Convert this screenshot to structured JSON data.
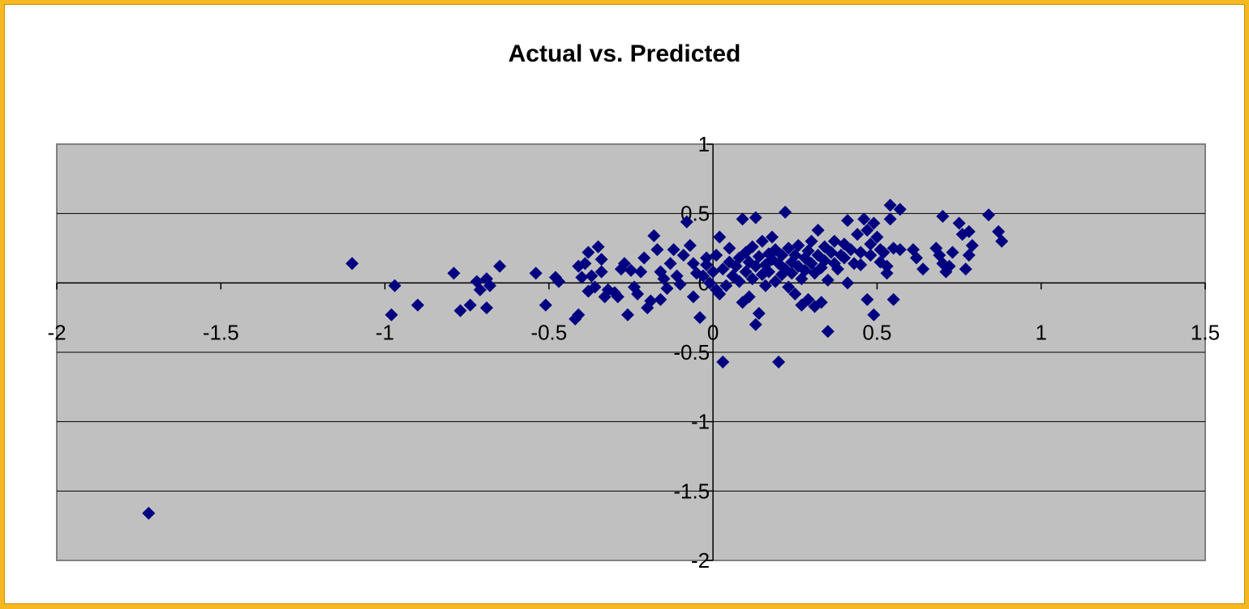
{
  "chart_data": {
    "type": "scatter",
    "title": "Actual vs. Predicted",
    "xlabel": "",
    "ylabel": "",
    "xlim": [
      -2,
      1.5
    ],
    "ylim": [
      -2,
      1
    ],
    "xticks": [
      "-2",
      "-1.5",
      "-1",
      "-0.5",
      "0",
      "0.5",
      "1",
      "1.5"
    ],
    "yticks": [
      "1",
      "0.5",
      "0",
      "-0.5",
      "-1",
      "-1.5",
      "-2"
    ],
    "grid": "horizontal",
    "legend": "none",
    "plot_background": "#c0c0c0",
    "marker": "diamond",
    "marker_color": "#000080",
    "series": [
      {
        "points": [
          [
            -1.72,
            -1.66
          ],
          [
            -1.1,
            0.14
          ],
          [
            -0.97,
            -0.02
          ],
          [
            -0.98,
            -0.23
          ],
          [
            -0.9,
            -0.16
          ],
          [
            -0.79,
            0.07
          ],
          [
            -0.77,
            -0.2
          ],
          [
            -0.74,
            -0.16
          ],
          [
            -0.72,
            0.01
          ],
          [
            -0.71,
            -0.05
          ],
          [
            -0.69,
            0.03
          ],
          [
            -0.68,
            -0.02
          ],
          [
            -0.69,
            -0.18
          ],
          [
            -0.65,
            0.12
          ],
          [
            -0.54,
            0.07
          ],
          [
            -0.51,
            -0.16
          ],
          [
            -0.48,
            0.04
          ],
          [
            -0.47,
            0.01
          ],
          [
            -0.42,
            -0.26
          ],
          [
            -0.41,
            -0.23
          ],
          [
            -0.41,
            0.12
          ],
          [
            -0.4,
            0.04
          ],
          [
            -0.39,
            0.14
          ],
          [
            -0.38,
            0.22
          ],
          [
            -0.38,
            -0.06
          ],
          [
            -0.37,
            0.05
          ],
          [
            -0.36,
            -0.03
          ],
          [
            -0.35,
            0.26
          ],
          [
            -0.34,
            0.17
          ],
          [
            -0.34,
            0.08
          ],
          [
            -0.33,
            -0.1
          ],
          [
            -0.32,
            -0.05
          ],
          [
            -0.3,
            -0.07
          ],
          [
            -0.29,
            -0.1
          ],
          [
            -0.28,
            0.1
          ],
          [
            -0.27,
            0.14
          ],
          [
            -0.26,
            -0.23
          ],
          [
            -0.25,
            0.09
          ],
          [
            -0.24,
            -0.03
          ],
          [
            -0.23,
            -0.08
          ],
          [
            -0.22,
            0.08
          ],
          [
            -0.21,
            0.18
          ],
          [
            -0.2,
            -0.18
          ],
          [
            -0.19,
            -0.13
          ],
          [
            -0.18,
            0.34
          ],
          [
            -0.17,
            0.24
          ],
          [
            -0.16,
            0.08
          ],
          [
            -0.16,
            -0.12
          ],
          [
            -0.15,
            0.03
          ],
          [
            -0.14,
            -0.04
          ],
          [
            -0.13,
            0.14
          ],
          [
            -0.12,
            0.24
          ],
          [
            -0.11,
            0.05
          ],
          [
            -0.1,
            -0.01
          ],
          [
            -0.09,
            0.2
          ],
          [
            -0.08,
            0.44
          ],
          [
            -0.07,
            0.27
          ],
          [
            -0.06,
            0.14
          ],
          [
            -0.06,
            -0.1
          ],
          [
            -0.05,
            0.07
          ],
          [
            -0.04,
            -0.25
          ],
          [
            -0.03,
            0.05
          ],
          [
            -0.02,
            0.13
          ],
          [
            -0.02,
            0.18
          ],
          [
            -0.01,
            0.0
          ],
          [
            0.0,
            0.08
          ],
          [
            0.01,
            -0.05
          ],
          [
            0.01,
            0.2
          ],
          [
            0.02,
            0.33
          ],
          [
            0.02,
            -0.08
          ],
          [
            0.03,
            0.1
          ],
          [
            0.03,
            -0.57
          ],
          [
            0.04,
            -0.02
          ],
          [
            0.05,
            0.15
          ],
          [
            0.05,
            0.25
          ],
          [
            0.06,
            0.05
          ],
          [
            0.07,
            0.12
          ],
          [
            0.08,
            0.01
          ],
          [
            0.08,
            0.18
          ],
          [
            0.09,
            0.46
          ],
          [
            0.09,
            -0.14
          ],
          [
            0.1,
            0.08
          ],
          [
            0.1,
            0.22
          ],
          [
            0.11,
            0.15
          ],
          [
            0.11,
            -0.1
          ],
          [
            0.12,
            0.03
          ],
          [
            0.12,
            0.26
          ],
          [
            0.13,
            0.12
          ],
          [
            0.13,
            0.47
          ],
          [
            0.13,
            -0.3
          ],
          [
            0.14,
            0.19
          ],
          [
            0.14,
            -0.22
          ],
          [
            0.15,
            0.06
          ],
          [
            0.15,
            0.3
          ],
          [
            0.16,
            -0.02
          ],
          [
            0.16,
            0.13
          ],
          [
            0.17,
            0.21
          ],
          [
            0.17,
            0.08
          ],
          [
            0.18,
            0.17
          ],
          [
            0.18,
            0.33
          ],
          [
            0.19,
            0.01
          ],
          [
            0.19,
            0.24
          ],
          [
            0.2,
            -0.57
          ],
          [
            0.2,
            0.14
          ],
          [
            0.21,
            0.06
          ],
          [
            0.21,
            0.2
          ],
          [
            0.22,
            0.51
          ],
          [
            0.22,
            0.1
          ],
          [
            0.23,
            0.25
          ],
          [
            0.23,
            -0.03
          ],
          [
            0.24,
            0.15
          ],
          [
            0.24,
            0.07
          ],
          [
            0.25,
            0.2
          ],
          [
            0.25,
            -0.08
          ],
          [
            0.26,
            0.12
          ],
          [
            0.26,
            0.27
          ],
          [
            0.27,
            0.03
          ],
          [
            0.27,
            -0.16
          ],
          [
            0.28,
            0.18
          ],
          [
            0.28,
            0.09
          ],
          [
            0.29,
            0.23
          ],
          [
            0.29,
            -0.12
          ],
          [
            0.3,
            0.14
          ],
          [
            0.3,
            0.3
          ],
          [
            0.31,
            0.07
          ],
          [
            0.31,
            -0.17
          ],
          [
            0.32,
            0.2
          ],
          [
            0.32,
            0.38
          ],
          [
            0.33,
            0.11
          ],
          [
            0.33,
            -0.14
          ],
          [
            0.34,
            0.26
          ],
          [
            0.34,
            0.16
          ],
          [
            0.35,
            0.02
          ],
          [
            0.35,
            -0.35
          ],
          [
            0.36,
            0.22
          ],
          [
            0.37,
            0.14
          ],
          [
            0.37,
            0.3
          ],
          [
            0.38,
            0.1
          ],
          [
            0.39,
            0.2
          ],
          [
            0.4,
            0.28
          ],
          [
            0.4,
            0.18
          ],
          [
            0.41,
            0.45
          ],
          [
            0.41,
            0.0
          ],
          [
            0.42,
            0.24
          ],
          [
            0.43,
            0.14
          ],
          [
            0.44,
            0.35
          ],
          [
            0.45,
            0.22
          ],
          [
            0.45,
            0.13
          ],
          [
            0.46,
            0.46
          ],
          [
            0.47,
            0.38
          ],
          [
            0.47,
            -0.12
          ],
          [
            0.48,
            0.28
          ],
          [
            0.48,
            0.2
          ],
          [
            0.49,
            0.43
          ],
          [
            0.49,
            -0.23
          ],
          [
            0.5,
            0.33
          ],
          [
            0.51,
            0.24
          ],
          [
            0.51,
            0.15
          ],
          [
            0.52,
            0.22
          ],
          [
            0.53,
            0.07
          ],
          [
            0.53,
            0.12
          ],
          [
            0.54,
            0.56
          ],
          [
            0.54,
            0.46
          ],
          [
            0.55,
            0.25
          ],
          [
            0.55,
            -0.12
          ],
          [
            0.57,
            0.24
          ],
          [
            0.57,
            0.53
          ],
          [
            0.61,
            0.24
          ],
          [
            0.62,
            0.18
          ],
          [
            0.64,
            0.1
          ],
          [
            0.68,
            0.25
          ],
          [
            0.69,
            0.2
          ],
          [
            0.7,
            0.14
          ],
          [
            0.7,
            0.48
          ],
          [
            0.71,
            0.08
          ],
          [
            0.72,
            0.12
          ],
          [
            0.73,
            0.22
          ],
          [
            0.75,
            0.43
          ],
          [
            0.76,
            0.35
          ],
          [
            0.77,
            0.1
          ],
          [
            0.78,
            0.2
          ],
          [
            0.78,
            0.37
          ],
          [
            0.79,
            0.27
          ],
          [
            0.84,
            0.49
          ],
          [
            0.87,
            0.37
          ],
          [
            0.88,
            0.3
          ]
        ]
      }
    ]
  }
}
